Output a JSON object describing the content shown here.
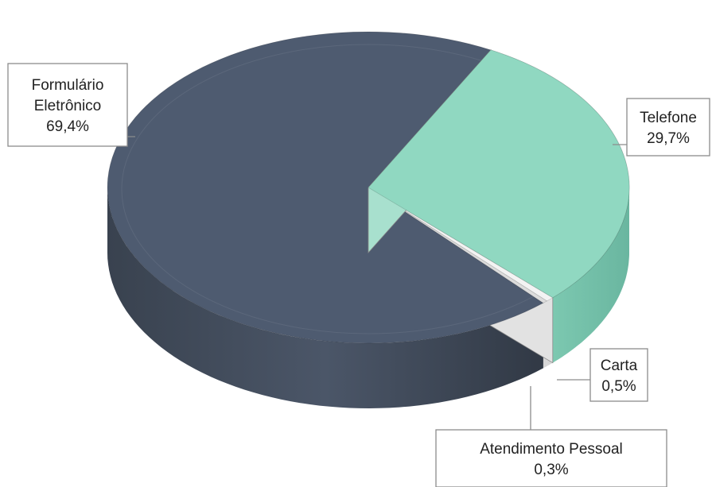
{
  "chart_data": {
    "type": "pie",
    "title": "",
    "three_d": true,
    "legend": "none",
    "slices": [
      {
        "label_lines": [
          "Formulário",
          "Eletrônico"
        ],
        "value": 69.4,
        "value_label": "69,4%",
        "color": "#4e5b70"
      },
      {
        "label_lines": [
          "Telefone"
        ],
        "value": 29.7,
        "value_label": "29,7%",
        "color": "#90d8c1"
      },
      {
        "label_lines": [
          "Carta"
        ],
        "value": 0.5,
        "value_label": "0,5%",
        "color": "#f0f0f0"
      },
      {
        "label_lines": [
          "Atendimento Pessoal"
        ],
        "value": 0.3,
        "value_label": "0,3%",
        "color": "#e6e6e6"
      }
    ]
  }
}
